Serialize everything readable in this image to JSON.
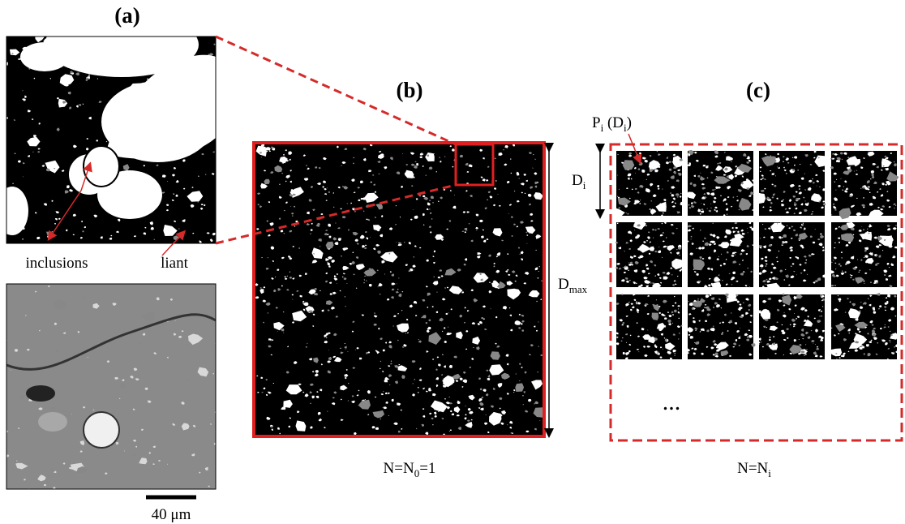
{
  "panel_a": {
    "label": "(a)",
    "annotations": [
      "inclusions",
      "liant"
    ],
    "scale_bar": "40 μm"
  },
  "panel_b": {
    "label": "(b)",
    "caption": [
      "N=N",
      "0",
      "=1"
    ]
  },
  "panel_c": {
    "label": "(c)",
    "patch_label": [
      "P",
      "i",
      " (D",
      "i",
      ")"
    ],
    "size_label": [
      "D",
      "i"
    ],
    "max_label": [
      "D",
      "max"
    ],
    "ellipsis": "...",
    "caption": [
      "N=N",
      "i"
    ]
  }
}
